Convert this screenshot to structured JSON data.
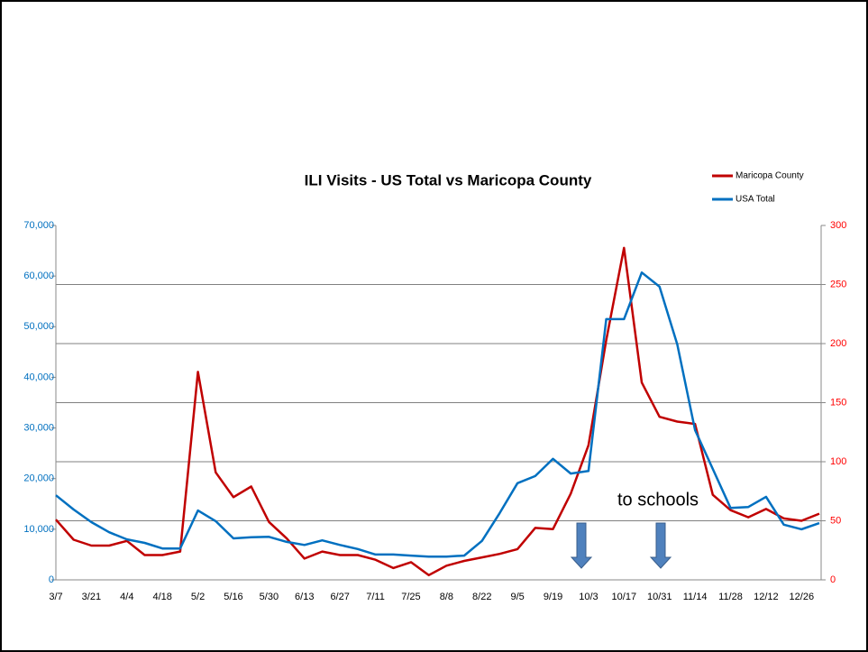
{
  "chart_data": {
    "type": "line",
    "title": "ILI Visits - US Total vs Maricopa County",
    "annotations": [
      "to schools"
    ],
    "categories": [
      "3/7",
      null,
      "3/21",
      null,
      "4/4",
      null,
      "4/18",
      null,
      "5/2",
      null,
      "5/16",
      null,
      "5/30",
      null,
      "6/13",
      null,
      "6/27",
      null,
      "7/11",
      null,
      "7/25",
      null,
      "8/8",
      null,
      "8/22",
      null,
      "9/5",
      null,
      "9/19",
      null,
      "10/3",
      null,
      "10/17",
      null,
      "10/31",
      null,
      "11/14",
      null,
      "11/28",
      null,
      "12/12",
      null,
      "12/26",
      null
    ],
    "series": [
      {
        "name": "Maricopa County",
        "color": "#c00000",
        "axis": "y2",
        "values": [
          51,
          34,
          29,
          29,
          33,
          21,
          21,
          24,
          176,
          91,
          70,
          79,
          49,
          35,
          18,
          24,
          21,
          21,
          17,
          10,
          15,
          4,
          12,
          16,
          19,
          22,
          26,
          44,
          43,
          73,
          114,
          203,
          281,
          167,
          138,
          134,
          132,
          72,
          59,
          53,
          60,
          52,
          50,
          56
        ]
      },
      {
        "name": "USA Total",
        "color": "#0070c0",
        "values": [
          16700,
          13900,
          11400,
          9400,
          8000,
          7300,
          6200,
          6200,
          13700,
          11600,
          8200,
          8400,
          8500,
          7500,
          6900,
          7800,
          6900,
          6100,
          5000,
          5000,
          4800,
          4600,
          4600,
          4800,
          7700,
          13200,
          19100,
          20500,
          23900,
          21000,
          21500,
          51500,
          51500,
          60700,
          57900,
          46500,
          29600,
          21900,
          14200,
          14400,
          16400,
          10900,
          10000,
          11200
        ]
      }
    ],
    "ylim": [
      0,
      70000
    ],
    "yticks": [
      0,
      {
        "value": 10000,
        "label": "10,000"
      },
      {
        "value": 20000,
        "label": "20,000"
      },
      {
        "value": 30000,
        "label": "30,000"
      },
      {
        "value": 40000,
        "label": "40,000"
      },
      {
        "value": 50000,
        "label": "50,000"
      },
      {
        "value": 60000,
        "label": "60,000"
      },
      {
        "value": 70000,
        "label": "70,000"
      }
    ],
    "y2lim": [
      0,
      300
    ],
    "y2ticks": [
      0,
      50,
      100,
      150,
      200,
      250,
      300
    ],
    "grid": "y2",
    "legend": "top-right"
  }
}
